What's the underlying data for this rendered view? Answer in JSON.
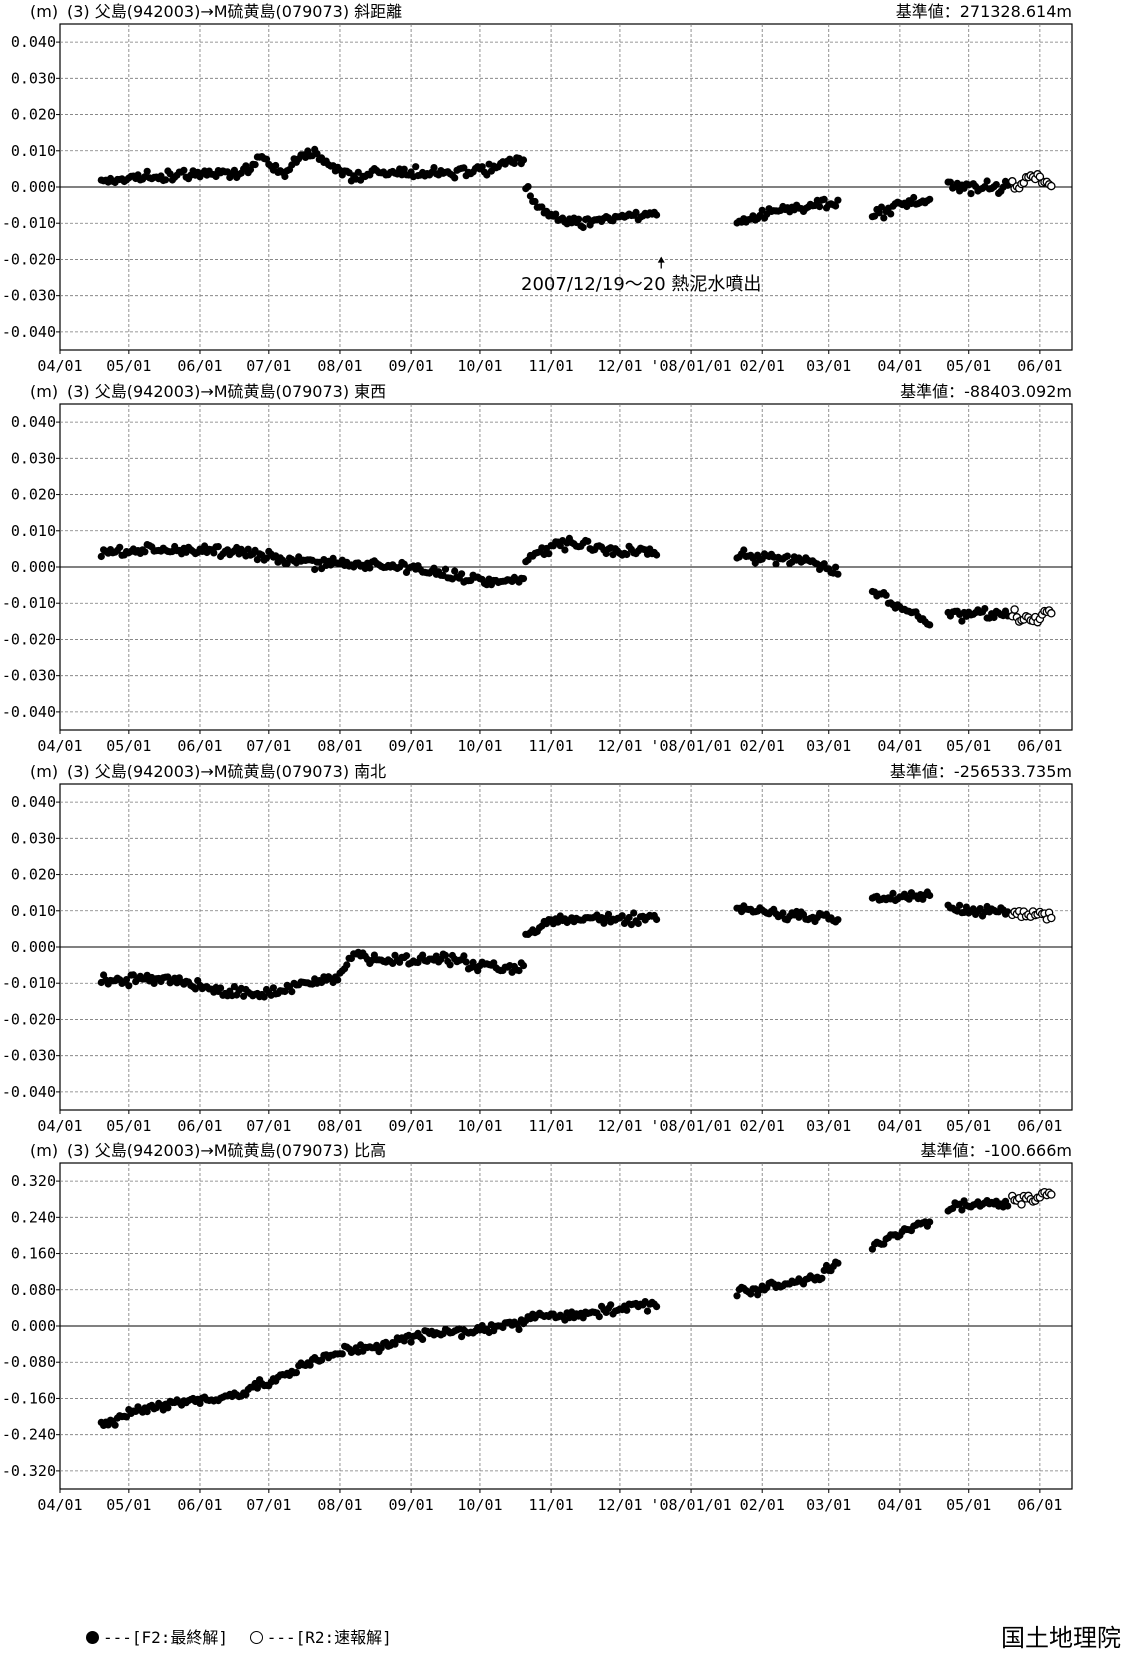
{
  "footer": {
    "legend_final": "---[F2:最終解]",
    "legend_rapid": "---[R2:速報解]",
    "organization": "国土地理院"
  },
  "x_tick_labels": [
    "04/01",
    "05/01",
    "06/01",
    "07/01",
    "08/01",
    "09/01",
    "10/01",
    "11/01",
    "12/01",
    "'08/01/01",
    "02/01",
    "03/01",
    "04/01",
    "05/01",
    "06/01"
  ],
  "chart_data": [
    {
      "type": "scatter",
      "unit": "(m)",
      "title": "(3) 父島(942003)→M硫黄島(079073) 斜距離",
      "reference": "基準値：271328.614m",
      "ylim": [
        -0.045,
        0.045
      ],
      "yticks": [
        "0.040",
        "0.030",
        "0.020",
        "0.010",
        "0.000",
        "-0.010",
        "-0.020",
        "-0.030",
        "-0.040"
      ],
      "annotation": {
        "text": "2007/12/19～20  熱泥水噴出",
        "date": "2007-12-19"
      },
      "segments": [
        {
          "start": "2007-04-19",
          "end": "2007-10-20",
          "points": [
            [
              0,
              0.002
            ],
            [
              60,
              0.004
            ],
            [
              70,
              0.008
            ],
            [
              80,
              0.004
            ],
            [
              90,
              0.01
            ],
            [
              110,
              0.002
            ],
            [
              120,
              0.004
            ],
            [
              140,
              0.004
            ],
            [
              160,
              0.004
            ],
            [
              175,
              0.006
            ],
            [
              184,
              0.008
            ]
          ]
        },
        {
          "start": "2007-10-21",
          "end": "2007-12-17",
          "points": [
            [
              0,
              0.0
            ],
            [
              3,
              -0.004
            ],
            [
              12,
              -0.008
            ],
            [
              25,
              -0.01
            ],
            [
              40,
              -0.008
            ],
            [
              57,
              -0.008
            ]
          ]
        },
        {
          "start": "2008-01-21",
          "end": "2008-03-05",
          "points": [
            [
              0,
              -0.01
            ],
            [
              20,
              -0.006
            ],
            [
              44,
              -0.004
            ]
          ]
        },
        {
          "start": "2008-03-20",
          "end": "2008-04-14",
          "points": [
            [
              0,
              -0.008
            ],
            [
              15,
              -0.004
            ],
            [
              25,
              -0.004
            ]
          ]
        },
        {
          "start": "2008-04-22",
          "end": "2008-05-18",
          "points": [
            [
              0,
              0.0
            ],
            [
              26,
              0.0
            ]
          ]
        }
      ],
      "rapid_segment": {
        "start": "2008-05-20",
        "end": "2008-06-06",
        "points": [
          [
            0,
            0.0
          ],
          [
            10,
            0.003
          ],
          [
            17,
            0.0
          ]
        ]
      }
    },
    {
      "type": "scatter",
      "unit": "(m)",
      "title": "(3) 父島(942003)→M硫黄島(079073) 東西",
      "reference": "基準値：-88403.092m",
      "ylim": [
        -0.045,
        0.045
      ],
      "yticks": [
        "0.040",
        "0.030",
        "0.020",
        "0.010",
        "0.000",
        "-0.010",
        "-0.020",
        "-0.030",
        "-0.040"
      ],
      "segments": [
        {
          "start": "2007-04-19",
          "end": "2007-10-20",
          "points": [
            [
              0,
              0.004
            ],
            [
              30,
              0.005
            ],
            [
              60,
              0.004
            ],
            [
              80,
              0.002
            ],
            [
              100,
              0.001
            ],
            [
              130,
              0.0
            ],
            [
              150,
              -0.002
            ],
            [
              170,
              -0.004
            ],
            [
              184,
              -0.004
            ]
          ]
        },
        {
          "start": "2007-10-21",
          "end": "2007-12-17",
          "points": [
            [
              0,
              0.002
            ],
            [
              15,
              0.007
            ],
            [
              30,
              0.005
            ],
            [
              57,
              0.004
            ]
          ]
        },
        {
          "start": "2008-01-21",
          "end": "2008-03-05",
          "points": [
            [
              0,
              0.003
            ],
            [
              30,
              0.002
            ],
            [
              44,
              -0.002
            ]
          ]
        },
        {
          "start": "2008-03-20",
          "end": "2008-04-14",
          "points": [
            [
              0,
              -0.006
            ],
            [
              13,
              -0.011
            ],
            [
              25,
              -0.016
            ]
          ]
        },
        {
          "start": "2008-04-22",
          "end": "2008-05-18",
          "points": [
            [
              0,
              -0.013
            ],
            [
              26,
              -0.013
            ]
          ]
        }
      ],
      "rapid_segment": {
        "start": "2008-05-20",
        "end": "2008-06-06",
        "points": [
          [
            0,
            -0.013
          ],
          [
            10,
            -0.015
          ],
          [
            17,
            -0.012
          ]
        ]
      }
    },
    {
      "type": "scatter",
      "unit": "(m)",
      "title": "(3) 父島(942003)→M硫黄島(079073) 南北",
      "reference": "基準値：-256533.735m",
      "ylim": [
        -0.045,
        0.045
      ],
      "yticks": [
        "0.040",
        "0.030",
        "0.020",
        "0.010",
        "0.000",
        "-0.010",
        "-0.020",
        "-0.030",
        "-0.040"
      ],
      "segments": [
        {
          "start": "2007-04-19",
          "end": "2007-10-20",
          "points": [
            [
              0,
              -0.009
            ],
            [
              30,
              -0.009
            ],
            [
              50,
              -0.012
            ],
            [
              70,
              -0.013
            ],
            [
              90,
              -0.01
            ],
            [
              103,
              -0.008
            ],
            [
              110,
              -0.002
            ],
            [
              130,
              -0.004
            ],
            [
              150,
              -0.003
            ],
            [
              170,
              -0.006
            ],
            [
              184,
              -0.006
            ]
          ]
        },
        {
          "start": "2007-10-21",
          "end": "2007-12-17",
          "points": [
            [
              0,
              0.003
            ],
            [
              10,
              0.007
            ],
            [
              30,
              0.008
            ],
            [
              57,
              0.008
            ]
          ]
        },
        {
          "start": "2008-01-21",
          "end": "2008-03-05",
          "points": [
            [
              0,
              0.011
            ],
            [
              20,
              0.009
            ],
            [
              44,
              0.008
            ]
          ]
        },
        {
          "start": "2008-03-20",
          "end": "2008-04-14",
          "points": [
            [
              0,
              0.014
            ],
            [
              25,
              0.014
            ]
          ]
        },
        {
          "start": "2008-04-22",
          "end": "2008-05-18",
          "points": [
            [
              0,
              0.01
            ],
            [
              26,
              0.01
            ]
          ]
        }
      ],
      "rapid_segment": {
        "start": "2008-05-20",
        "end": "2008-06-06",
        "points": [
          [
            0,
            0.009
          ],
          [
            17,
            0.009
          ]
        ]
      }
    },
    {
      "type": "scatter",
      "unit": "(m)",
      "title": "(3) 父島(942003)→M硫黄島(079073) 比高",
      "reference": "基準値：-100.666m",
      "ylim": [
        -0.36,
        0.36
      ],
      "yticks": [
        "0.320",
        "0.240",
        "0.160",
        "0.080",
        "0.000",
        "-0.080",
        "-0.160",
        "-0.240",
        "-0.320"
      ],
      "segments": [
        {
          "start": "2007-04-19",
          "end": "2007-10-20",
          "points": [
            [
              0,
              -0.22
            ],
            [
              15,
              -0.185
            ],
            [
              40,
              -0.165
            ],
            [
              60,
              -0.15
            ],
            [
              75,
              -0.12
            ],
            [
              90,
              -0.085
            ],
            [
              105,
              -0.055
            ],
            [
              125,
              -0.04
            ],
            [
              140,
              -0.02
            ],
            [
              160,
              -0.01
            ],
            [
              184,
              0.005
            ]
          ]
        },
        {
          "start": "2007-10-21",
          "end": "2007-12-17",
          "points": [
            [
              0,
              0.02
            ],
            [
              30,
              0.03
            ],
            [
              57,
              0.05
            ]
          ]
        },
        {
          "start": "2008-01-21",
          "end": "2008-03-05",
          "points": [
            [
              0,
              0.075
            ],
            [
              20,
              0.09
            ],
            [
              36,
              0.11
            ],
            [
              44,
              0.145
            ]
          ]
        },
        {
          "start": "2008-03-20",
          "end": "2008-04-14",
          "points": [
            [
              0,
              0.18
            ],
            [
              25,
              0.23
            ]
          ]
        },
        {
          "start": "2008-04-22",
          "end": "2008-05-18",
          "points": [
            [
              0,
              0.26
            ],
            [
              26,
              0.275
            ]
          ]
        }
      ],
      "rapid_segment": {
        "start": "2008-05-20",
        "end": "2008-06-06",
        "points": [
          [
            0,
            0.275
          ],
          [
            17,
            0.29
          ]
        ]
      }
    }
  ]
}
